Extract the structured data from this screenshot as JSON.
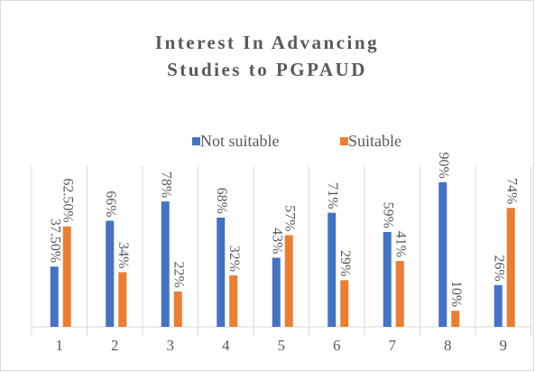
{
  "chart_data": {
    "type": "bar",
    "title": [
      "Interest In Advancing",
      "Studies to PGPAUD"
    ],
    "categories": [
      "1",
      "2",
      "3",
      "4",
      "5",
      "6",
      "7",
      "8",
      "9"
    ],
    "series": [
      {
        "name": "Not suitable",
        "color": "#4472c4",
        "values": [
          37.5,
          66,
          78,
          68,
          43,
          71,
          59,
          90,
          26
        ],
        "value_labels": [
          "37.50%",
          "66%",
          "78%",
          "68%",
          "43%",
          "71%",
          "59%",
          "90%",
          "26%"
        ]
      },
      {
        "name": "Suitable",
        "color": "#ed7d31",
        "values": [
          62.5,
          34,
          22,
          32,
          57,
          29,
          41,
          10,
          74
        ],
        "value_labels": [
          "62.50%",
          "34%",
          "22%",
          "32%",
          "57%",
          "29%",
          "41%",
          "10%",
          "74%"
        ]
      }
    ],
    "ylim": [
      0,
      100
    ],
    "legend": "top"
  }
}
